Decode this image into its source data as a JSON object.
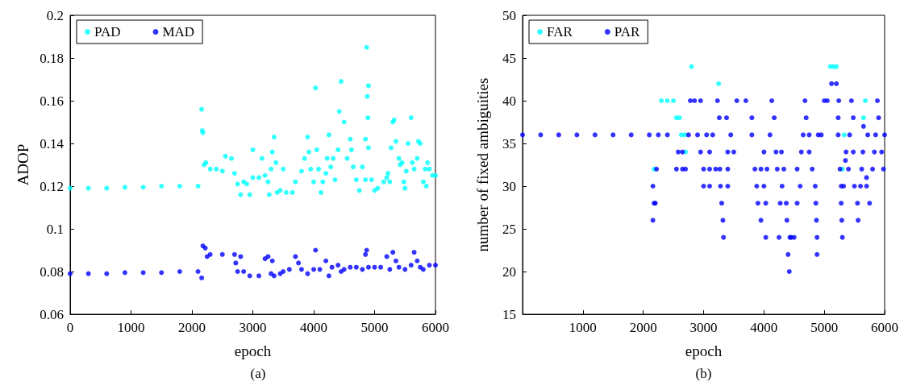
{
  "chart_data": [
    {
      "type": "scatter",
      "xlabel": "epoch",
      "ylabel": "ADOP",
      "annotations": [
        "(a)"
      ],
      "xlim": [
        0,
        6000
      ],
      "xticks": [
        0,
        1000,
        2000,
        3000,
        4000,
        5000,
        6000
      ],
      "ylim": [
        0.06,
        0.2
      ],
      "yticks": [
        0.06,
        0.08,
        0.1,
        0.12,
        0.14,
        0.16,
        0.18,
        0.2
      ],
      "grid": false,
      "legend": "top left",
      "marker": "circle",
      "series": [
        {
          "name": "PAD",
          "color": "#00ffff",
          "x": [
            0,
            300,
            600,
            900,
            1200,
            1500,
            1800,
            2100,
            2160,
            2170,
            2180,
            2200,
            2230,
            2300,
            2400,
            2500,
            2550,
            2650,
            2700,
            2750,
            2800,
            2850,
            2900,
            2950,
            3000,
            3000,
            3100,
            3150,
            3200,
            3250,
            3270,
            3300,
            3320,
            3350,
            3380,
            3400,
            3450,
            3500,
            3550,
            3650,
            3700,
            3800,
            3850,
            3900,
            3920,
            3950,
            4000,
            4030,
            4050,
            4080,
            4120,
            4150,
            4200,
            4220,
            4250,
            4280,
            4320,
            4350,
            4400,
            4420,
            4450,
            4500,
            4550,
            4600,
            4620,
            4650,
            4700,
            4750,
            4800,
            4850,
            4850,
            4870,
            4880,
            4890,
            4900,
            4900,
            4950,
            5000,
            5050,
            5150,
            5200,
            5220,
            5250,
            5270,
            5300,
            5320,
            5350,
            5400,
            5420,
            5450,
            5480,
            5500,
            5520,
            5550,
            5600,
            5620,
            5650,
            5700,
            5720,
            5750,
            5800,
            5830,
            5850,
            5870,
            5900,
            5950,
            6000
          ],
          "values": [
            0.119,
            0.119,
            0.119,
            0.1195,
            0.1195,
            0.12,
            0.12,
            0.12,
            0.156,
            0.146,
            0.145,
            0.13,
            0.131,
            0.128,
            0.128,
            0.127,
            0.134,
            0.133,
            0.126,
            0.121,
            0.116,
            0.122,
            0.121,
            0.116,
            0.137,
            0.124,
            0.124,
            0.133,
            0.125,
            0.122,
            0.116,
            0.128,
            0.136,
            0.143,
            0.131,
            0.117,
            0.118,
            0.128,
            0.117,
            0.117,
            0.122,
            0.127,
            0.133,
            0.143,
            0.136,
            0.128,
            0.122,
            0.166,
            0.137,
            0.128,
            0.117,
            0.122,
            0.126,
            0.133,
            0.144,
            0.129,
            0.133,
            0.123,
            0.137,
            0.155,
            0.169,
            0.15,
            0.133,
            0.142,
            0.137,
            0.129,
            0.123,
            0.118,
            0.129,
            0.123,
            0.142,
            0.185,
            0.162,
            0.152,
            0.167,
            0.138,
            0.123,
            0.118,
            0.119,
            0.122,
            0.124,
            0.126,
            0.122,
            0.138,
            0.15,
            0.151,
            0.141,
            0.133,
            0.13,
            0.131,
            0.122,
            0.119,
            0.127,
            0.14,
            0.152,
            0.131,
            0.128,
            0.133,
            0.141,
            0.14,
            0.122,
            0.128,
            0.12,
            0.131,
            0.128,
            0.125,
            0.125
          ]
        },
        {
          "name": "MAD",
          "color": "#0000ff",
          "x": [
            0,
            300,
            600,
            900,
            1200,
            1500,
            1800,
            2100,
            2160,
            2180,
            2220,
            2250,
            2300,
            2500,
            2700,
            2720,
            2750,
            2800,
            2850,
            2950,
            3100,
            3200,
            3250,
            3300,
            3320,
            3350,
            3450,
            3500,
            3600,
            3700,
            3750,
            3800,
            3900,
            4000,
            4030,
            4100,
            4200,
            4250,
            4300,
            4400,
            4450,
            4500,
            4600,
            4700,
            4800,
            4850,
            4870,
            4900,
            5000,
            5100,
            5200,
            5250,
            5300,
            5350,
            5400,
            5500,
            5600,
            5650,
            5700,
            5750,
            5800,
            5900,
            6000
          ],
          "values": [
            0.079,
            0.079,
            0.079,
            0.0795,
            0.0795,
            0.0795,
            0.08,
            0.08,
            0.077,
            0.092,
            0.091,
            0.087,
            0.088,
            0.088,
            0.088,
            0.084,
            0.08,
            0.087,
            0.08,
            0.078,
            0.078,
            0.086,
            0.087,
            0.079,
            0.085,
            0.078,
            0.079,
            0.08,
            0.081,
            0.087,
            0.084,
            0.081,
            0.079,
            0.081,
            0.09,
            0.081,
            0.085,
            0.078,
            0.082,
            0.083,
            0.08,
            0.081,
            0.082,
            0.082,
            0.081,
            0.088,
            0.09,
            0.082,
            0.082,
            0.082,
            0.087,
            0.081,
            0.089,
            0.085,
            0.082,
            0.081,
            0.083,
            0.089,
            0.085,
            0.082,
            0.081,
            0.083,
            0.083
          ]
        }
      ]
    },
    {
      "type": "scatter",
      "xlabel": "epoch",
      "ylabel": "number of fixed ambiguities",
      "annotations": [
        "(b)"
      ],
      "xlim": [
        0,
        6000
      ],
      "xticks": [
        1000,
        2000,
        3000,
        4000,
        5000,
        6000
      ],
      "ylim": [
        15,
        50
      ],
      "yticks": [
        15,
        20,
        25,
        30,
        35,
        40,
        45,
        50
      ],
      "grid": false,
      "legend": "top left",
      "marker": "circle",
      "series": [
        {
          "name": "FAR",
          "color": "#00ffff",
          "x": [
            2180,
            2300,
            2400,
            2500,
            2550,
            2600,
            2630,
            2690,
            2700,
            2800,
            3250,
            5100,
            5150,
            5200,
            5300,
            5330,
            5650,
            5680
          ],
          "values": [
            32,
            40,
            40,
            40,
            38,
            38,
            36,
            36,
            34,
            44,
            42,
            44,
            44,
            44,
            32,
            36,
            38,
            40
          ]
        },
        {
          "name": "PAR",
          "color": "#0000ff",
          "x": [
            0,
            300,
            600,
            900,
            1200,
            1500,
            1800,
            2100,
            2160,
            2160,
            2180,
            2200,
            2220,
            2250,
            2400,
            2550,
            2580,
            2650,
            2650,
            2700,
            2750,
            2780,
            2850,
            2900,
            2950,
            2950,
            3000,
            3000,
            3050,
            3100,
            3100,
            3100,
            3150,
            3200,
            3230,
            3260,
            3270,
            3280,
            3300,
            3320,
            3330,
            3380,
            3400,
            3400,
            3400,
            3450,
            3500,
            3550,
            3700,
            3800,
            3800,
            3850,
            3880,
            3900,
            3950,
            3950,
            4000,
            4000,
            4030,
            4030,
            4050,
            4100,
            4130,
            4170,
            4200,
            4220,
            4250,
            4270,
            4290,
            4300,
            4330,
            4370,
            4380,
            4400,
            4420,
            4430,
            4450,
            4500,
            4550,
            4550,
            4600,
            4620,
            4650,
            4680,
            4700,
            4750,
            4750,
            4800,
            4850,
            4860,
            4870,
            4880,
            4880,
            4900,
            4950,
            5000,
            5050,
            5120,
            5200,
            5230,
            5230,
            5240,
            5260,
            5280,
            5280,
            5290,
            5300,
            5320,
            5350,
            5360,
            5400,
            5420,
            5450,
            5480,
            5480,
            5500,
            5550,
            5560,
            5600,
            5620,
            5640,
            5650,
            5700,
            5700,
            5720,
            5750,
            5800,
            5830,
            5850,
            5880,
            5900,
            5950,
            5980,
            6000
          ],
          "values": [
            36,
            36,
            36,
            36,
            36,
            36,
            36,
            36,
            30,
            26,
            28,
            28,
            32,
            36,
            36,
            32,
            34,
            34,
            32,
            32,
            36,
            40,
            40,
            36,
            40,
            34,
            32,
            30,
            36,
            32,
            34,
            30,
            36,
            32,
            40,
            38,
            32,
            30,
            28,
            26,
            24,
            38,
            32,
            30,
            34,
            36,
            34,
            40,
            40,
            38,
            36,
            32,
            30,
            28,
            26,
            32,
            34,
            30,
            28,
            24,
            32,
            36,
            40,
            38,
            34,
            32,
            24,
            28,
            34,
            30,
            32,
            28,
            26,
            22,
            20,
            24,
            24,
            24,
            28,
            32,
            30,
            34,
            36,
            40,
            38,
            36,
            34,
            32,
            30,
            28,
            26,
            24,
            22,
            36,
            36,
            40,
            40,
            42,
            42,
            38,
            36,
            40,
            32,
            28,
            30,
            26,
            24,
            30,
            33,
            34,
            32,
            36,
            40,
            38,
            34,
            30,
            28,
            26,
            30,
            32,
            34,
            37,
            31,
            30,
            36,
            28,
            32,
            34,
            36,
            40,
            38,
            34,
            32,
            36
          ]
        }
      ]
    }
  ]
}
